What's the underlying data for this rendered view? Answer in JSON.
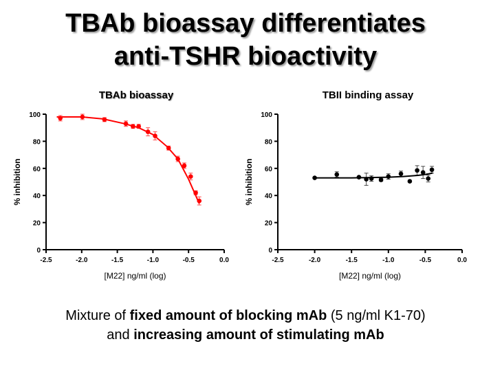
{
  "slide": {
    "title_line1": "TBAb bioassay differentiates",
    "title_line2": "anti-TSHR bioactivity",
    "footer_line1": [
      {
        "text": "Mixture of ",
        "bold": false
      },
      {
        "text": "fixed amount of blocking mAb",
        "bold": true
      },
      {
        "text": " (5 ng/ml K1-70)",
        "bold": false
      }
    ],
    "footer_line2": [
      {
        "text": "and ",
        "bold": false
      },
      {
        "text": "increasing amount of stimulating mAb",
        "bold": true
      }
    ]
  },
  "chart_data": [
    {
      "type": "scatter",
      "title": "TBAb bioassay",
      "xlabel": "[M22] ng/ml (log)",
      "ylabel": "% inhibition",
      "xlim": [
        -2.5,
        0.0
      ],
      "ylim": [
        0,
        100
      ],
      "xticks": [
        "-2.5",
        "-2.0",
        "-1.5",
        "-1.0",
        "-0.5",
        "0.0"
      ],
      "yticks": [
        "0",
        "20",
        "40",
        "60",
        "80",
        "100"
      ],
      "color": "#ff0000",
      "error_bars": true,
      "grid": false,
      "x": [
        -2.3,
        -1.99,
        -1.68,
        -1.38,
        -1.28,
        -1.2,
        -1.07,
        -0.97,
        -0.78,
        -0.65,
        -0.56,
        -0.47,
        -0.4,
        -0.35
      ],
      "y": [
        97,
        98,
        96,
        93,
        91,
        91,
        87,
        84,
        75,
        67,
        62,
        54,
        42,
        36
      ],
      "err": [
        2,
        2,
        1.5,
        2,
        1.5,
        1.5,
        3,
        3,
        1.5,
        2,
        2,
        2.5,
        1.5,
        3
      ],
      "fit_curve": {
        "x": [
          -2.35,
          -2.0,
          -1.7,
          -1.4,
          -1.2,
          -1.0,
          -0.8,
          -0.65,
          -0.5,
          -0.4,
          -0.35
        ],
        "y": [
          98,
          98,
          96.5,
          93,
          90,
          85,
          76,
          67,
          52,
          40,
          34
        ]
      }
    },
    {
      "type": "scatter",
      "title": "TBII binding assay",
      "xlabel": "[M22] ng/ml (log)",
      "ylabel": "% inhibition",
      "xlim": [
        -2.5,
        0.0
      ],
      "ylim": [
        0,
        100
      ],
      "xticks": [
        "-2.5",
        "-2.0",
        "-1.5",
        "-1.0",
        "-0.5",
        "0.0"
      ],
      "yticks": [
        "0",
        "20",
        "40",
        "60",
        "80",
        "100"
      ],
      "color": "#000000",
      "error_bars": true,
      "grid": false,
      "x": [
        -2.0,
        -1.7,
        -1.4,
        -1.3,
        -1.23,
        -1.1,
        -1.0,
        -0.83,
        -0.71,
        -0.61,
        -0.53,
        -0.46,
        -0.41
      ],
      "y": [
        53,
        55.5,
        53.5,
        52,
        52.5,
        51.5,
        54,
        56,
        50.5,
        58.5,
        57,
        52.5,
        59
      ],
      "err": [
        0,
        2,
        0,
        4.5,
        2,
        1,
        2,
        2,
        0,
        3.5,
        4.5,
        2.5,
        2.5
      ],
      "fit_curve": {
        "x": [
          -2.0,
          -1.5,
          -1.0,
          -0.8,
          -0.6,
          -0.5,
          -0.4
        ],
        "y": [
          53,
          53,
          53.5,
          54,
          54.8,
          55.5,
          56.5
        ]
      }
    }
  ]
}
